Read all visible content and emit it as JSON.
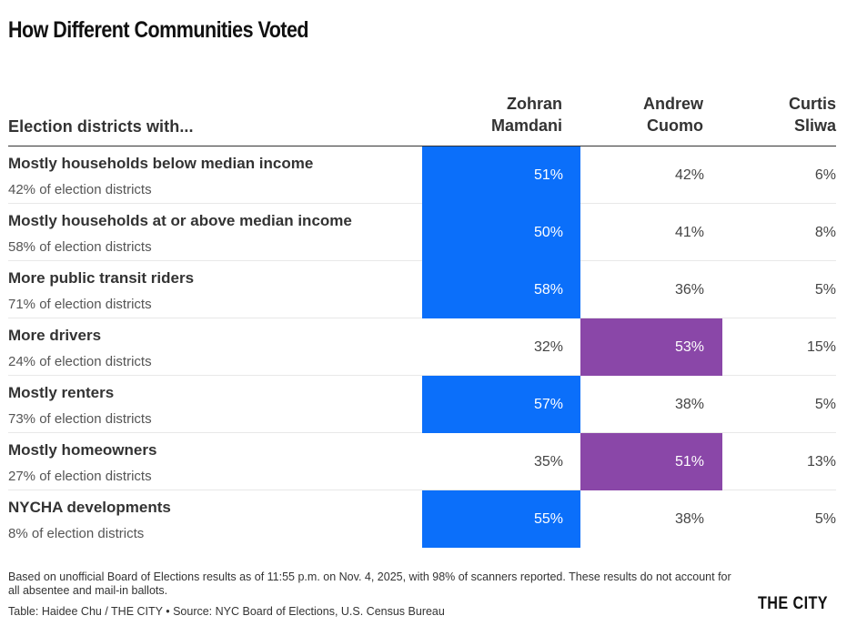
{
  "title": "How Different Communities Voted",
  "header": {
    "row_label": "Election districts with...",
    "candidates": [
      {
        "first": "Zohran",
        "last": "Mamdani"
      },
      {
        "first": "Andrew",
        "last": "Cuomo"
      },
      {
        "first": "Curtis",
        "last": "Sliwa"
      }
    ]
  },
  "colors": {
    "mamdani": "#0b6ffa",
    "cuomo": "#8a47a8"
  },
  "rows": [
    {
      "label": "Mostly households below median income",
      "sub": "42% of election districts",
      "values": [
        "51%",
        "42%",
        "6%"
      ],
      "winner": 0
    },
    {
      "label": "Mostly households at or above median income",
      "sub": "58% of election districts",
      "values": [
        "50%",
        "41%",
        "8%"
      ],
      "winner": 0
    },
    {
      "label": "More public transit riders",
      "sub": "71% of election districts",
      "values": [
        "58%",
        "36%",
        "5%"
      ],
      "winner": 0
    },
    {
      "label": "More drivers",
      "sub": "24% of election districts",
      "values": [
        "32%",
        "53%",
        "15%"
      ],
      "winner": 1
    },
    {
      "label": "Mostly renters",
      "sub": "73% of election districts",
      "values": [
        "57%",
        "38%",
        "5%"
      ],
      "winner": 0
    },
    {
      "label": "Mostly homeowners",
      "sub": "27% of election districts",
      "values": [
        "35%",
        "51%",
        "13%"
      ],
      "winner": 1
    },
    {
      "label": "NYCHA developments",
      "sub": "8% of election districts",
      "values": [
        "55%",
        "38%",
        "5%"
      ],
      "winner": 0
    }
  ],
  "chart_data": {
    "type": "table",
    "title": "How Different Communities Voted",
    "columns": [
      "Election districts with...",
      "Zohran Mamdani",
      "Andrew Cuomo",
      "Curtis Sliwa"
    ],
    "categories": [
      "Mostly households below median income",
      "Mostly households at or above median income",
      "More public transit riders",
      "More drivers",
      "Mostly renters",
      "Mostly homeowners",
      "NYCHA developments"
    ],
    "share_of_districts": [
      42,
      58,
      71,
      24,
      73,
      27,
      8
    ],
    "series": [
      {
        "name": "Zohran Mamdani",
        "values": [
          51,
          50,
          58,
          32,
          57,
          35,
          55
        ]
      },
      {
        "name": "Andrew Cuomo",
        "values": [
          42,
          41,
          36,
          53,
          38,
          51,
          38
        ]
      },
      {
        "name": "Curtis Sliwa",
        "values": [
          6,
          8,
          5,
          15,
          5,
          13,
          5
        ]
      }
    ],
    "unit": "%"
  },
  "footer": {
    "note": "Based on unofficial Board of Elections results as of 11:55 p.m. on Nov. 4, 2025, with 98% of scanners reported. These results do not account for all absentee and mail-in ballots.",
    "credit": "Table: Haidee Chu / THE CITY • Source: NYC Board of Elections, U.S. Census Bureau",
    "logo": "THE CITY"
  }
}
